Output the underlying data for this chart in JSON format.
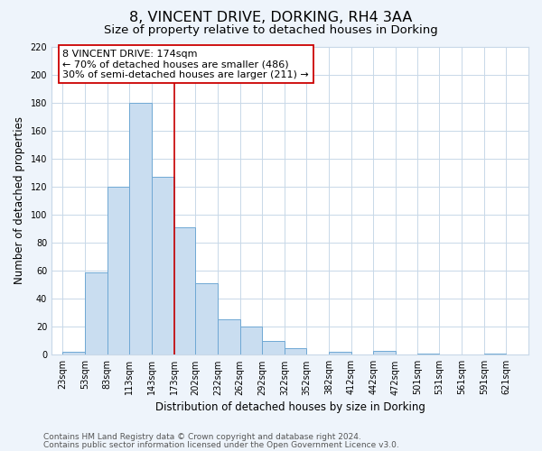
{
  "title": "8, VINCENT DRIVE, DORKING, RH4 3AA",
  "subtitle": "Size of property relative to detached houses in Dorking",
  "xlabel": "Distribution of detached houses by size in Dorking",
  "ylabel": "Number of detached properties",
  "bar_left_edges": [
    23,
    53,
    83,
    113,
    143,
    173,
    202,
    232,
    262,
    292,
    322,
    352,
    382,
    412,
    442,
    472,
    501,
    531,
    561,
    591
  ],
  "bar_widths": [
    30,
    30,
    30,
    30,
    30,
    29,
    30,
    30,
    30,
    30,
    30,
    30,
    30,
    30,
    30,
    29,
    30,
    30,
    30,
    30
  ],
  "bar_heights": [
    2,
    59,
    120,
    180,
    127,
    91,
    51,
    25,
    20,
    10,
    5,
    0,
    2,
    0,
    3,
    0,
    1,
    0,
    0,
    1
  ],
  "bar_color": "#c9ddf0",
  "bar_edge_color": "#6fa8d4",
  "grid_color": "#c8d8e8",
  "plot_bg_color": "#ffffff",
  "fig_bg_color": "#eef4fb",
  "vline_x": 174,
  "vline_color": "#cc0000",
  "annotation_text": "8 VINCENT DRIVE: 174sqm\n← 70% of detached houses are smaller (486)\n30% of semi-detached houses are larger (211) →",
  "annotation_box_color": "#ffffff",
  "annotation_box_edge_color": "#cc0000",
  "ylim": [
    0,
    220
  ],
  "yticks": [
    0,
    20,
    40,
    60,
    80,
    100,
    120,
    140,
    160,
    180,
    200,
    220
  ],
  "xtick_labels": [
    "23sqm",
    "53sqm",
    "83sqm",
    "113sqm",
    "143sqm",
    "173sqm",
    "202sqm",
    "232sqm",
    "262sqm",
    "292sqm",
    "322sqm",
    "352sqm",
    "382sqm",
    "412sqm",
    "442sqm",
    "472sqm",
    "501sqm",
    "531sqm",
    "561sqm",
    "591sqm",
    "621sqm"
  ],
  "xtick_positions": [
    23,
    53,
    83,
    113,
    143,
    173,
    202,
    232,
    262,
    292,
    322,
    352,
    382,
    412,
    442,
    472,
    501,
    531,
    561,
    591,
    621
  ],
  "xlim_left": 8,
  "xlim_right": 651,
  "footer_line1": "Contains HM Land Registry data © Crown copyright and database right 2024.",
  "footer_line2": "Contains public sector information licensed under the Open Government Licence v3.0.",
  "title_fontsize": 11.5,
  "subtitle_fontsize": 9.5,
  "axis_label_fontsize": 8.5,
  "tick_fontsize": 7,
  "annotation_fontsize": 8,
  "footer_fontsize": 6.5
}
